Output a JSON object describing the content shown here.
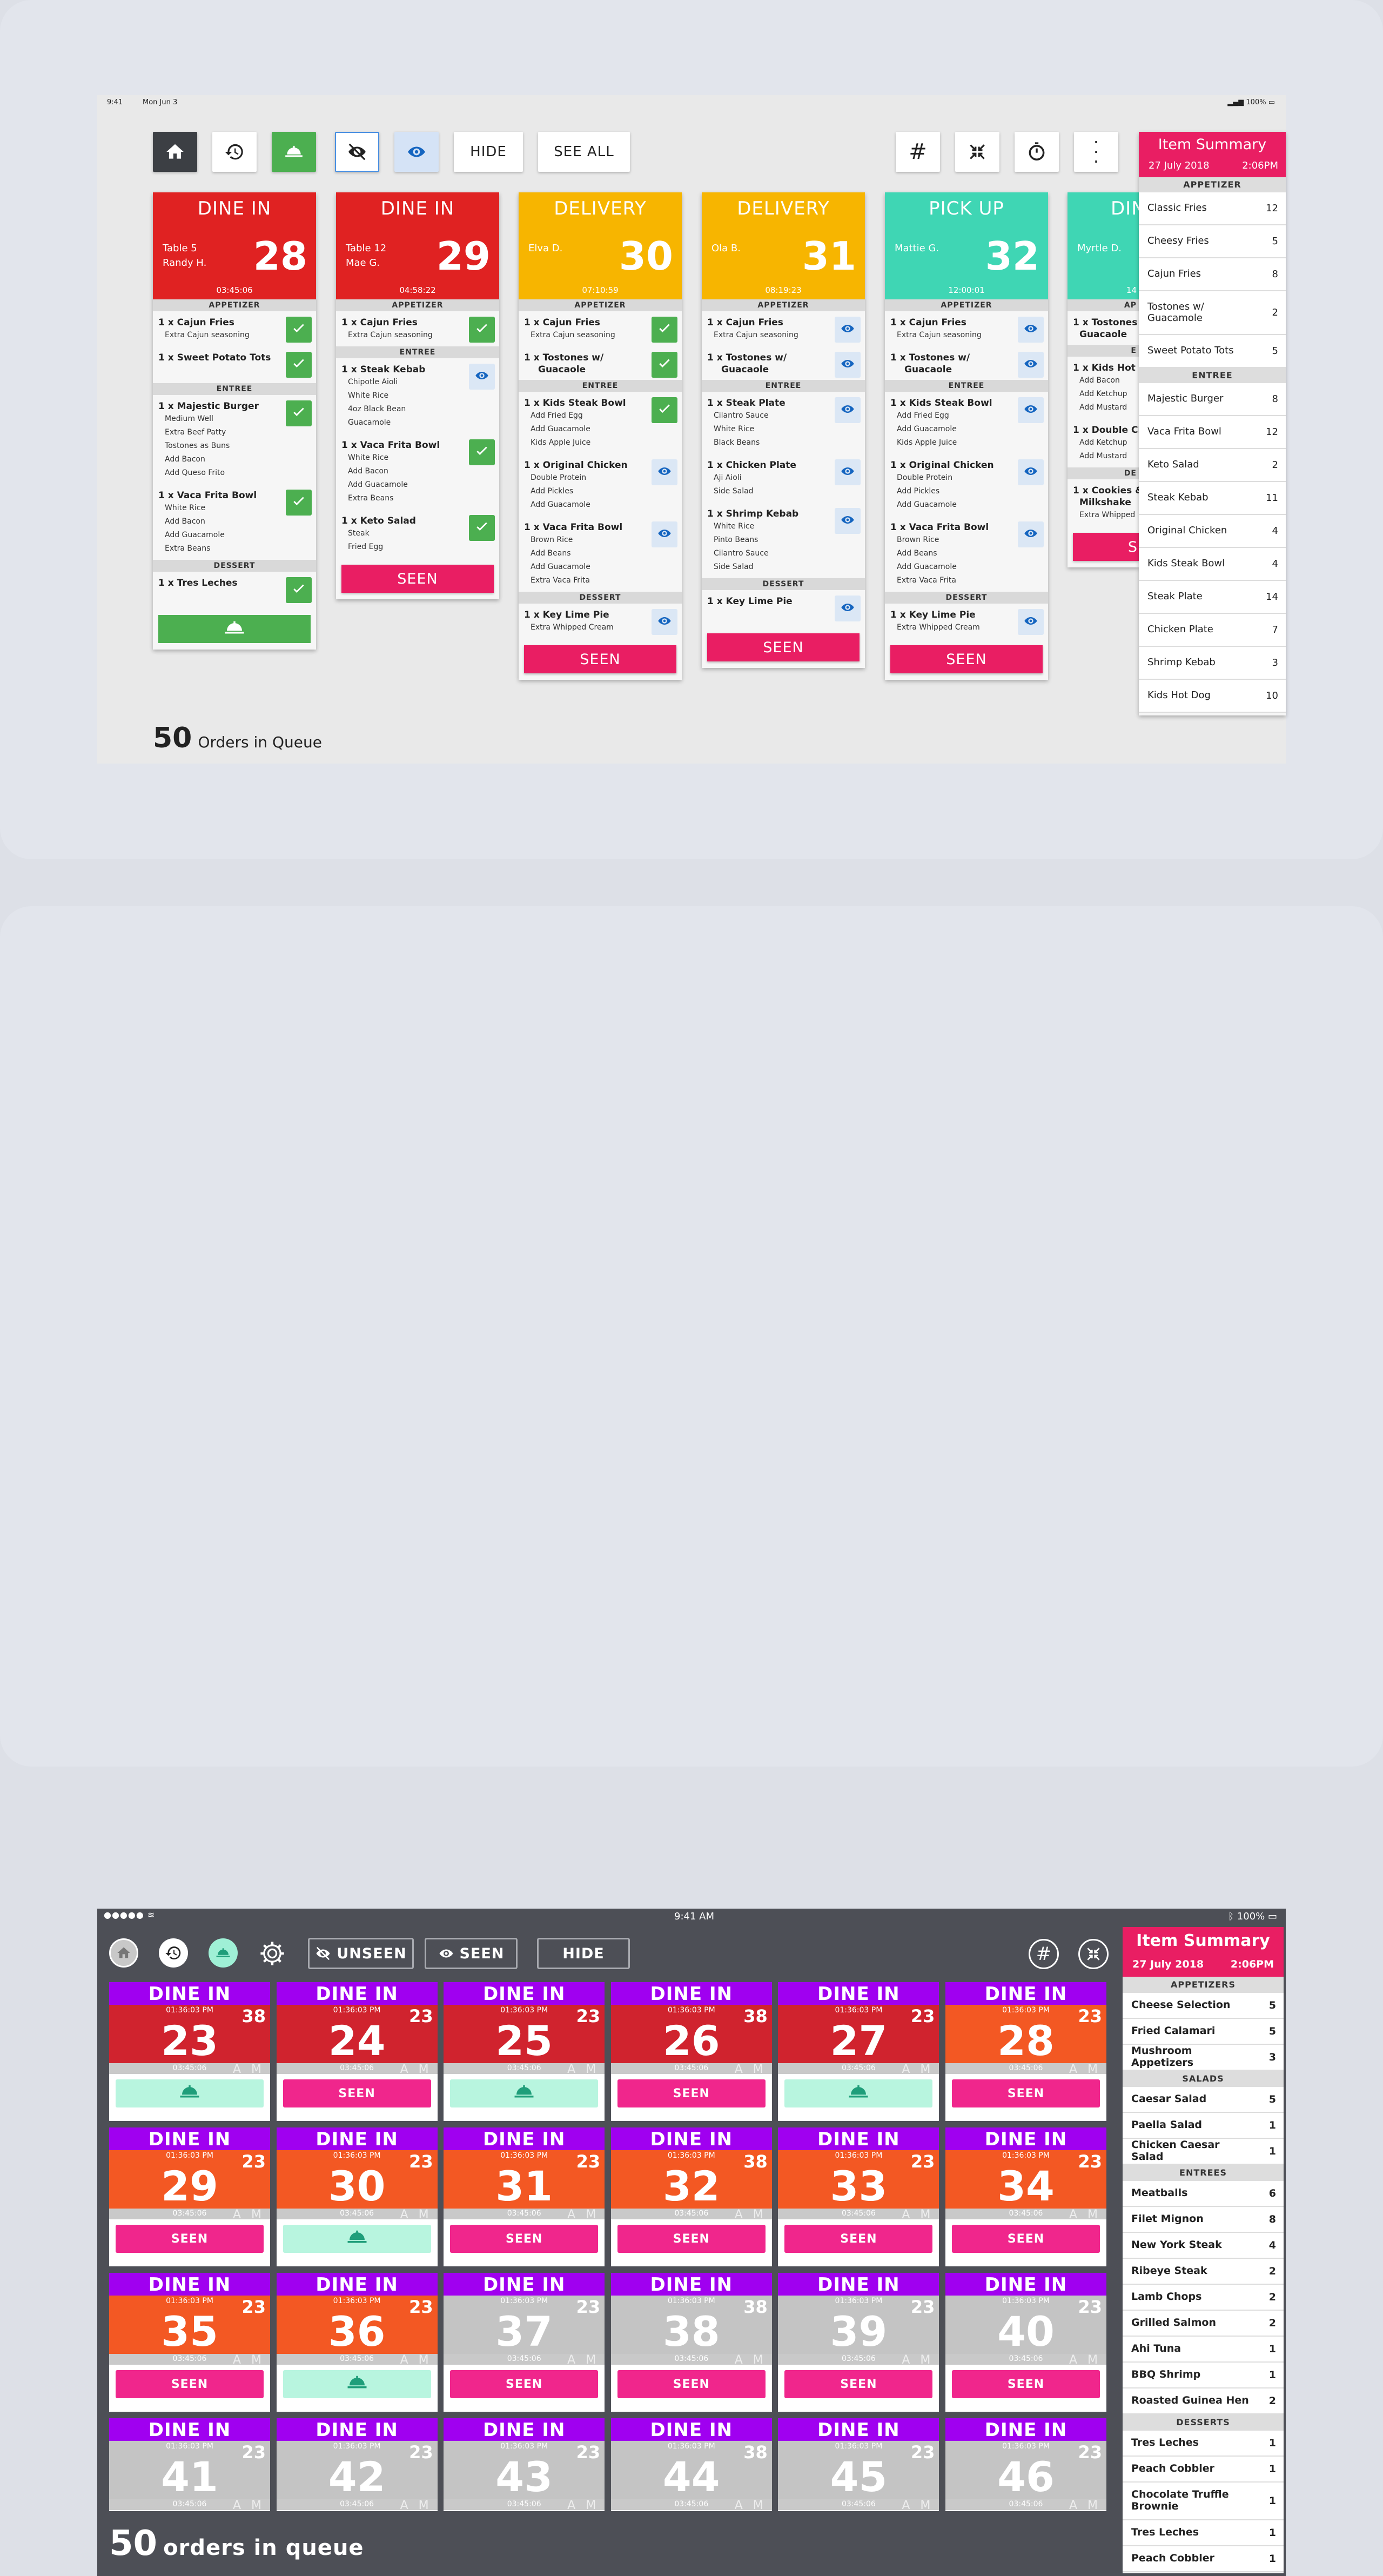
{
  "screen1": {
    "status": {
      "time": "9:41",
      "date": "Mon Jun 3",
      "battery": "100%"
    },
    "toolbar": {
      "hide": "HIDE",
      "see_all": "SEE ALL"
    },
    "footer": {
      "count": "50",
      "label": "Orders in Queue"
    },
    "tickets": [
      {
        "type": "DINE IN",
        "line1": "Table 5",
        "line2": "Randy H.",
        "number": "28",
        "timer": "03:45:06"
      },
      {
        "type": "DINE IN",
        "line1": "Table 12",
        "line2": "Mae G.",
        "number": "29",
        "timer": "04:58:22"
      },
      {
        "type": "DELIVERY",
        "line1": "",
        "line2": "Elva D.",
        "number": "30",
        "timer": "07:10:59"
      },
      {
        "type": "DELIVERY",
        "line1": "",
        "line2": "Ola B.",
        "number": "31",
        "timer": "08:19:23"
      },
      {
        "type": "PICK UP",
        "line1": "",
        "line2": "Mattie G.",
        "number": "32",
        "timer": "12:00:01"
      },
      {
        "type": "DIN",
        "line1": "",
        "line2": "Myrtle D.",
        "number": "",
        "timer": "14"
      }
    ],
    "sections": {
      "appetizer": "APPETIZER",
      "entree": "ENTREE",
      "dessert": "DESSERT",
      "ap_cut": "AP",
      "e_cut": "E",
      "de_cut": "DE"
    },
    "seen": "SEEN",
    "seen_cut": "S",
    "items": {
      "t0": [
        {
          "name": "1 x Cajun Fries",
          "mods": "Extra Cajun seasoning"
        },
        {
          "name": "1 x Sweet Potato Tots",
          "mods": ""
        },
        {
          "name": "1 x Majestic Burger",
          "mods": [
            "Medium Well",
            "Extra Beef Patty",
            "Tostones as Buns",
            "Add Bacon",
            "Add Queso Frito"
          ]
        },
        {
          "name": "1 x Vaca Frita Bowl",
          "mods": [
            "White Rice",
            "Add Bacon",
            "Add Guacamole",
            "Extra Beans"
          ]
        },
        {
          "name": "1 x Tres Leches"
        }
      ],
      "t1": [
        {
          "name": "1 x Cajun Fries",
          "mods": "Extra Cajun seasoning"
        },
        {
          "name": "1 x Steak Kebab",
          "mods": [
            "Chipotle Aioli",
            "White Rice",
            "4oz Black Bean",
            "Guacamole"
          ]
        },
        {
          "name": "1 x Vaca Frita Bowl",
          "mods": [
            "White Rice",
            "Add Bacon",
            "Add Guacamole",
            "Extra Beans"
          ]
        },
        {
          "name": "1 x Keto Salad",
          "mods": [
            "Steak",
            "Fried Egg"
          ]
        }
      ],
      "t2": [
        {
          "name": "1 x Cajun Fries",
          "mods": "Extra Cajun seasoning"
        },
        {
          "name": "1 x Tostones w/",
          "name2": "Guacaole"
        },
        {
          "name": "1 x Kids Steak Bowl",
          "mods": [
            "Add Fried Egg",
            "Add Guacamole",
            "Kids Apple Juice"
          ]
        },
        {
          "name": "1 x Original Chicken",
          "mods": [
            "Double Protein",
            "Add Pickles",
            "Add Guacamole"
          ]
        },
        {
          "name": "1 x Vaca Frita Bowl",
          "mods": [
            "Brown Rice",
            "Add Beans",
            "Add Guacamole",
            "Extra Vaca Frita"
          ]
        },
        {
          "name": "1 x Key Lime Pie",
          "mods": "Extra Whipped Cream"
        }
      ],
      "t3": [
        {
          "name": "1 x Cajun Fries",
          "mods": "Extra Cajun seasoning"
        },
        {
          "name": "1 x Tostones w/",
          "name2": "Guacaole"
        },
        {
          "name": "1 x Steak Plate",
          "mods": [
            "Cilantro Sauce",
            "White Rice",
            "Black Beans"
          ]
        },
        {
          "name": "1 x Chicken Plate",
          "mods": [
            "Aji Aioli",
            "Side Salad"
          ]
        },
        {
          "name": "1 x Shrimp Kebab",
          "mods": [
            "White Rice",
            "Pinto Beans",
            "Cilantro Sauce",
            "Side Salad"
          ]
        },
        {
          "name": "1 x Key Lime Pie"
        }
      ],
      "t4": [
        {
          "name": "1 x Cajun Fries",
          "mods": "Extra Cajun seasoning"
        },
        {
          "name": "1 x Tostones w/",
          "name2": "Guacaole"
        },
        {
          "name": "1 x Kids Steak Bowl",
          "mods": [
            "Add Fried Egg",
            "Add Guacamole",
            "Kids Apple Juice"
          ]
        },
        {
          "name": "1 x Original Chicken",
          "mods": [
            "Double Protein",
            "Add Pickles",
            "Add Guacamole"
          ]
        },
        {
          "name": "1 x Vaca Frita Bowl",
          "mods": [
            "Brown Rice",
            "Add Beans",
            "Add Guacamole",
            "Extra Vaca Frita"
          ]
        },
        {
          "name": "1 x Key Lime Pie",
          "mods": "Extra Whipped Cream"
        }
      ],
      "t5": [
        {
          "name": "1 x Tostones w",
          "name2": "Guacaole"
        },
        {
          "name": "1 x Kids Hot Do",
          "mods": [
            "Add Bacon",
            "Add Ketchup",
            "Add Mustard"
          ]
        },
        {
          "name": "1 x Double Che",
          "mods": [
            "Add Ketchup",
            "Add Mustard"
          ]
        },
        {
          "name": "1 x Cookies & C",
          "name2": "Milkshake",
          "mods": "Extra Whipped"
        }
      ]
    },
    "summary": {
      "title": "Item Summary",
      "date": "27 July 2018",
      "time": "2:06PM",
      "groups": [
        {
          "name": "APPETIZER",
          "rows": [
            [
              "Classic Fries",
              "12"
            ],
            [
              "Cheesy Fries",
              "5"
            ],
            [
              "Cajun Fries",
              "8"
            ],
            [
              "Tostones w/ Guacamole",
              "2"
            ],
            [
              "Sweet Potato Tots",
              "5"
            ]
          ]
        },
        {
          "name": "ENTREE",
          "rows": [
            [
              "Majestic Burger",
              "8"
            ],
            [
              "Vaca Frita Bowl",
              "12"
            ],
            [
              "Keto Salad",
              "2"
            ],
            [
              "Steak Kebab",
              "11"
            ],
            [
              "Original Chicken",
              "4"
            ],
            [
              "Kids Steak Bowl",
              "4"
            ],
            [
              "Steak Plate",
              "14"
            ],
            [
              "Chicken Plate",
              "7"
            ],
            [
              "Shrimp Kebab",
              "3"
            ],
            [
              "Kids Hot Dog",
              "10"
            ]
          ]
        }
      ]
    }
  },
  "screen2": {
    "status": {
      "time": "9:41 AM",
      "battery": "100%"
    },
    "toolbar": {
      "unseen": "UNSEEN",
      "seen": "SEEN",
      "hide": "HIDE"
    },
    "footer": {
      "count": "50",
      "label": "orders in queue"
    },
    "tile_label": "DINE IN",
    "tile_time": "01:36:03 PM",
    "tile_timer": "03:45:06",
    "tile_ampm": "A M",
    "seen_label": "SEEN",
    "tiles": [
      {
        "n": "23",
        "c": "38",
        "st": "red",
        "act": "bell"
      },
      {
        "n": "24",
        "c": "23",
        "st": "red",
        "act": "seen"
      },
      {
        "n": "25",
        "c": "23",
        "st": "red",
        "act": "bell"
      },
      {
        "n": "26",
        "c": "38",
        "st": "red",
        "act": "seen"
      },
      {
        "n": "27",
        "c": "23",
        "st": "red",
        "act": "bell"
      },
      {
        "n": "28",
        "c": "23",
        "st": "orange",
        "act": "seen"
      },
      {
        "n": "29",
        "c": "23",
        "st": "orange",
        "act": "seen"
      },
      {
        "n": "30",
        "c": "23",
        "st": "orange",
        "act": "bell"
      },
      {
        "n": "31",
        "c": "23",
        "st": "orange",
        "act": "seen"
      },
      {
        "n": "32",
        "c": "38",
        "st": "orange",
        "act": "seen"
      },
      {
        "n": "33",
        "c": "23",
        "st": "orange",
        "act": "seen"
      },
      {
        "n": "34",
        "c": "23",
        "st": "orange",
        "act": "seen"
      },
      {
        "n": "35",
        "c": "23",
        "st": "orange",
        "act": "seen"
      },
      {
        "n": "36",
        "c": "23",
        "st": "orange",
        "act": "bell"
      },
      {
        "n": "37",
        "c": "23",
        "st": "grey",
        "act": "seen"
      },
      {
        "n": "38",
        "c": "38",
        "st": "grey",
        "act": "seen"
      },
      {
        "n": "39",
        "c": "23",
        "st": "grey",
        "act": "seen"
      },
      {
        "n": "40",
        "c": "23",
        "st": "grey",
        "act": "seen"
      },
      {
        "n": "41",
        "c": "23",
        "st": "grey",
        "act": "none"
      },
      {
        "n": "42",
        "c": "23",
        "st": "grey",
        "act": "none"
      },
      {
        "n": "43",
        "c": "23",
        "st": "grey",
        "act": "none"
      },
      {
        "n": "44",
        "c": "38",
        "st": "grey",
        "act": "none"
      },
      {
        "n": "45",
        "c": "23",
        "st": "grey",
        "act": "none"
      },
      {
        "n": "46",
        "c": "23",
        "st": "grey",
        "act": "none"
      }
    ],
    "summary": {
      "title": "Item Summary",
      "date": "27 July 2018",
      "time": "2:06PM",
      "groups": [
        {
          "name": "APPETIZERS",
          "rows": [
            [
              "Cheese Selection",
              "5"
            ],
            [
              "Fried Calamari",
              "5"
            ],
            [
              "Mushroom Appetizers",
              "3"
            ]
          ]
        },
        {
          "name": "SALADS",
          "rows": [
            [
              "Caesar Salad",
              "5"
            ],
            [
              "Paella Salad",
              "1"
            ],
            [
              "Chicken Caesar Salad",
              "1"
            ]
          ]
        },
        {
          "name": "ENTREES",
          "rows": [
            [
              "Meatballs",
              "6"
            ],
            [
              "Filet Mignon",
              "8"
            ],
            [
              "New York Steak",
              "4"
            ],
            [
              "Ribeye Steak",
              "2"
            ],
            [
              "Lamb Chops",
              "2"
            ],
            [
              "Grilled Salmon",
              "2"
            ],
            [
              "Ahi Tuna",
              "1"
            ],
            [
              "BBQ Shrimp",
              "1"
            ],
            [
              "Roasted Guinea Hen",
              "2"
            ]
          ]
        },
        {
          "name": "DESSERTS",
          "rows": [
            [
              "Tres Leches",
              "1"
            ],
            [
              "Peach Cobbler",
              "1"
            ],
            [
              "Chocolate Truffle Brownie",
              "1"
            ],
            [
              "Tres Leches",
              "1"
            ],
            [
              "Peach Cobbler",
              "1"
            ]
          ]
        }
      ]
    }
  },
  "colors": {
    "dine_in": "#e02222",
    "delivery": "#f7b500",
    "pick_up": "#3fd6b4",
    "seen": "#e91e63",
    "check": "#4caf50",
    "purple": "#a000f0",
    "tile_red": "#d0232e",
    "tile_orange": "#f35823",
    "tile_grey": "#c4c4c4"
  }
}
